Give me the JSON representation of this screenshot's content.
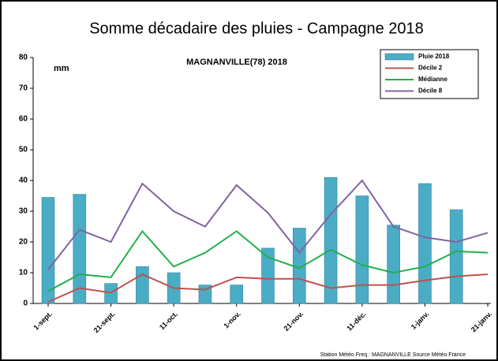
{
  "chart_data": {
    "type": "bar_line",
    "title": "Somme décadaire des pluies - Campagne 2018",
    "subtitle": "MAGNANVILLE(78) 2018",
    "y_label": "mm",
    "footer": "Station Météo Freq : MAGNANVILLE     Source Météo France",
    "categories": [
      "1-sept.",
      null,
      "21-sept.",
      null,
      "11-oct.",
      null,
      "1-nov.",
      null,
      "21-nov.",
      null,
      "11-déc.",
      null,
      "1-janv.",
      null,
      "21-janv."
    ],
    "series": [
      {
        "name": "Pluie 2018",
        "kind": "bar",
        "color": "#4bacc6",
        "values": [
          34.5,
          35.5,
          6.5,
          12,
          10,
          6,
          6,
          18,
          24.5,
          41,
          35,
          25.5,
          39,
          30.5,
          null
        ]
      },
      {
        "name": "Décile 2",
        "kind": "line",
        "color": "#c0504d",
        "values": [
          0.5,
          5,
          3.5,
          9.5,
          5,
          4.5,
          8.5,
          8,
          8,
          5,
          6,
          6,
          7.5,
          8.8,
          9.5
        ]
      },
      {
        "name": "Médianne",
        "kind": "line",
        "color": "#20b04b",
        "values": [
          4,
          9.5,
          8.5,
          23.5,
          12,
          16.5,
          23.5,
          15,
          11.5,
          17.5,
          12.5,
          10,
          12,
          17,
          16.5
        ]
      },
      {
        "name": "Décile 8",
        "kind": "line",
        "color": "#8064a2",
        "values": [
          11,
          24,
          20,
          39,
          30,
          25,
          38.5,
          29.5,
          16.5,
          29,
          40,
          25,
          21.5,
          20,
          23
        ]
      }
    ],
    "ylim": [
      0,
      80
    ],
    "yticks": [
      0,
      10,
      20,
      30,
      40,
      50,
      60,
      70,
      80
    ],
    "grid": false,
    "legend": "top-right"
  }
}
